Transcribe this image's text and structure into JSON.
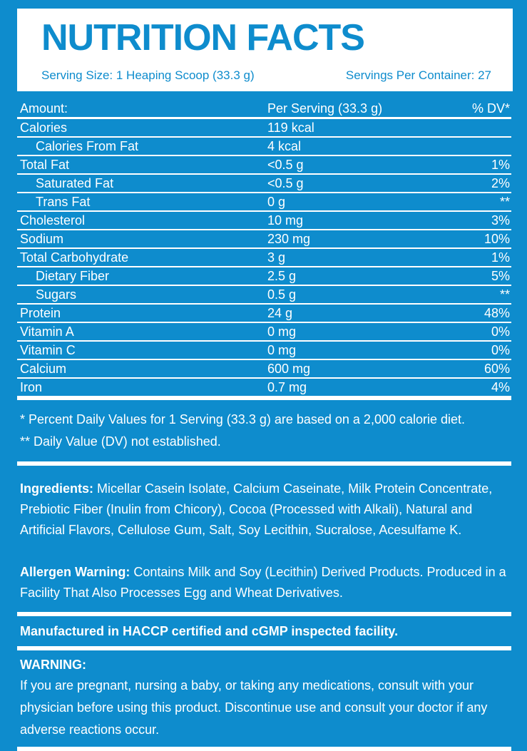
{
  "colors": {
    "background": "#0e8ccd",
    "panel": "#ffffff",
    "text_on_panel": "#0e8ccd",
    "text_on_blue": "#ffffff"
  },
  "header": {
    "title": "NUTRITION FACTS",
    "serving_size": "Serving Size: 1 Heaping Scoop (33.3 g)",
    "servings_per_container": "Servings Per Container: 27"
  },
  "table": {
    "header": {
      "label": "Amount:",
      "value": "Per Serving (33.3 g)",
      "dv": "% DV*"
    },
    "rows": [
      {
        "label": "Calories",
        "value": "119 kcal",
        "dv": ""
      },
      {
        "label": "Calories From Fat",
        "value": "4 kcal",
        "dv": ""
      },
      {
        "label": "Total Fat",
        "value": "<0.5 g",
        "dv": "1%"
      },
      {
        "label": "Saturated Fat",
        "value": "<0.5 g",
        "dv": "2%"
      },
      {
        "label": "Trans Fat",
        "value": "0 g",
        "dv": "**"
      },
      {
        "label": "Cholesterol",
        "value": "10 mg",
        "dv": "3%"
      },
      {
        "label": "Sodium",
        "value": "230 mg",
        "dv": "10%"
      },
      {
        "label": "Total Carbohydrate",
        "value": "3 g",
        "dv": "1%"
      },
      {
        "label": "Dietary Fiber",
        "value": "2.5 g",
        "dv": "5%"
      },
      {
        "label": "Sugars",
        "value": "0.5 g",
        "dv": "**"
      },
      {
        "label": "Protein",
        "value": "24 g",
        "dv": "48%"
      },
      {
        "label": "Vitamin A",
        "value": "0 mg",
        "dv": "0%"
      },
      {
        "label": "Vitamin C",
        "value": "0 mg",
        "dv": "0%"
      },
      {
        "label": "Calcium",
        "value": "600 mg",
        "dv": "60%"
      },
      {
        "label": "Iron",
        "value": "0.7 mg",
        "dv": "4%"
      }
    ]
  },
  "footnotes": {
    "line1": "* Percent Daily Values for 1 Serving (33.3 g) are based on a 2,000 calorie diet.",
    "line2": "** Daily Value (DV) not established."
  },
  "ingredients": {
    "lead": "Ingredients:",
    "text": " Micellar Casein Isolate, Calcium Caseinate, Milk Protein Concentrate, Prebiotic Fiber (Inulin from Chicory), Cocoa (Processed with Alkali), Natural and Artificial Flavors, Cellulose Gum, Salt, Soy Lecithin, Sucralose, Acesulfame K."
  },
  "allergen": {
    "lead": "Allergen Warning:",
    "text": " Contains Milk and Soy (Lecithin) Derived Products. Produced in a Facility That Also Processes Egg and Wheat Derivatives."
  },
  "manufactured": "Manufactured in HACCP certified and cGMP inspected facility.",
  "warning": {
    "heading": "WARNING:",
    "text": "If you are pregnant, nursing a baby, or taking any medications, consult with your physician before using this product. Discontinue use and consult your doctor if any adverse reactions occur."
  }
}
